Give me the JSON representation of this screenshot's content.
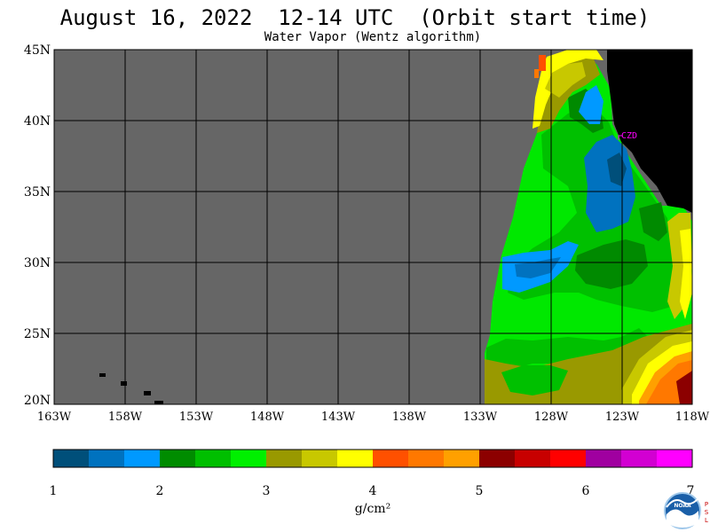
{
  "header": {
    "title": "August 16, 2022  12-14 UTC  (Orbit start time)",
    "subtitle": "Water Vapor (Wentz algorithm)"
  },
  "map": {
    "lat_labels": [
      "45N",
      "40N",
      "35N",
      "30N",
      "25N",
      "20N"
    ],
    "lon_labels": [
      "163W",
      "158W",
      "153W",
      "148W",
      "143W",
      "138W",
      "133W",
      "128W",
      "123W",
      "118W"
    ],
    "station_label": "CZD",
    "colors": {
      "no_data": "#666666",
      "land": "#000000",
      "grid": "#000000",
      "station": "#ff00ff"
    }
  },
  "legend": {
    "colors": [
      "#004f7a",
      "#0072bf",
      "#0099ff",
      "#008c00",
      "#00bf00",
      "#00f000",
      "#999900",
      "#c8c800",
      "#ffff00",
      "#ff5000",
      "#ff7800",
      "#ffa000",
      "#8c0000",
      "#c80000",
      "#ff0000",
      "#a000a0",
      "#d200d2",
      "#ff00ff"
    ],
    "tick_labels": [
      "1",
      "2",
      "3",
      "4",
      "5",
      "6",
      "7"
    ],
    "unit": "g/cm²"
  },
  "logos": {
    "noaa": "NOAA",
    "psl": "PSL"
  }
}
